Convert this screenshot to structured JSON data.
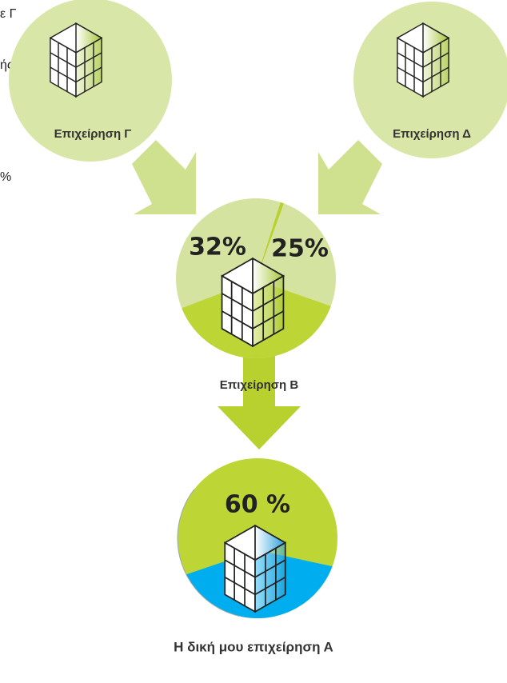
{
  "fragments": [
    "ε Γ",
    "ής",
    "%"
  ],
  "nodes": [
    {
      "label": "Επιχείρηση Γ"
    },
    {
      "label": "Επιχείρηση Δ"
    },
    {
      "label": "Επιχείρηση Β",
      "shares": [
        "32%",
        "25%"
      ]
    },
    {
      "label": "Η δική μου επιχείρηση Α",
      "shares": [
        "60 %"
      ]
    }
  ]
}
